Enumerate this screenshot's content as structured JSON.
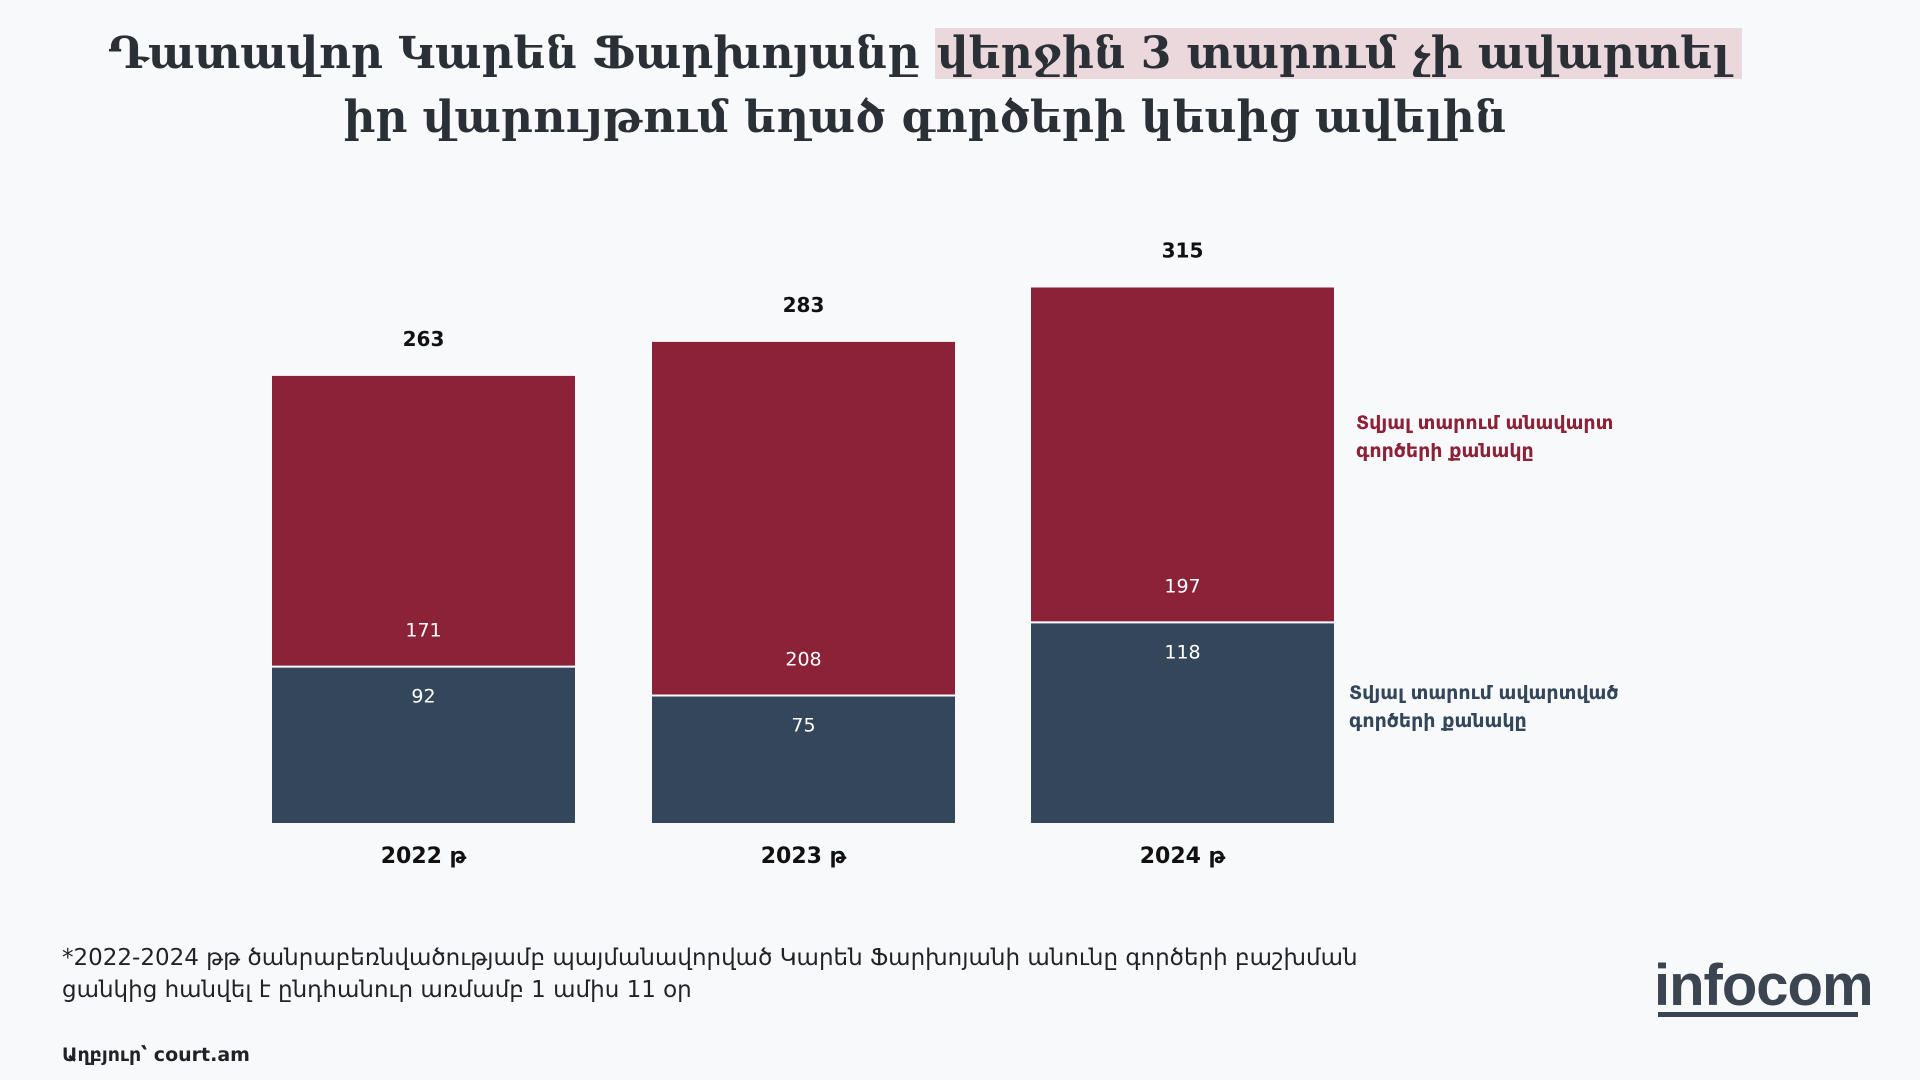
{
  "title": {
    "line1_part1": "Դատավոր Կարեն Ֆարխոյանը",
    "line1_highlight": "վերջին 3 տարում չի ավարտել",
    "line2": "իր վարույթում եղած գործերի կեսից ավելին"
  },
  "colors": {
    "unfinished": "#8b2237",
    "finished": "#34475a",
    "highlight": "#ead8dc"
  },
  "legend": {
    "unfinished": "Տվյալ տարում անավարտ գործերի քանակը",
    "finished": "Տվյալ տարում ավարտված գործերի քանակը"
  },
  "chart_data": {
    "type": "bar",
    "stacked": true,
    "categories": [
      "2022 թ",
      "2023 թ",
      "2024 թ"
    ],
    "series": [
      {
        "name": "Տվյալ տարում ավարտված գործերի քանակը",
        "values": [
          92,
          75,
          118
        ]
      },
      {
        "name": "Տվյալ տարում անավարտ գործերի քանակը",
        "values": [
          171,
          208,
          197
        ]
      }
    ],
    "totals": [
      263,
      283,
      315
    ],
    "legend_position": "right",
    "grid": false
  },
  "footnote": "*2022-2024 թթ  ծանրաբեռնվածությամբ պայմանավորված Կարեն Ֆարխոյանի անունը գործերի բաշխման ցանկից հանվել է ընդհանուր առմամբ 1 ամիս 11 օր",
  "source": "Աղբյուր՝  court.am",
  "logo": "infocom"
}
